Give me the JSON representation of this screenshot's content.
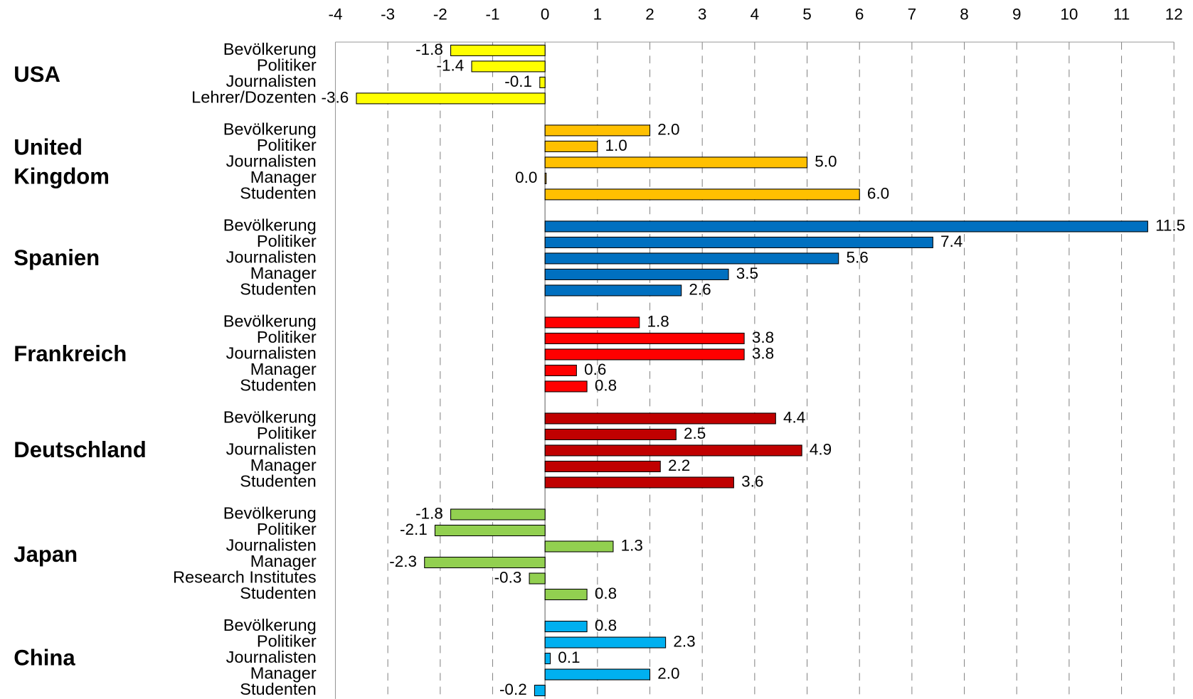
{
  "chart_data": {
    "type": "grouped-barh",
    "xlim": [
      -4,
      12
    ],
    "xticks": [
      -4,
      -3,
      -2,
      -1,
      0,
      1,
      2,
      3,
      4,
      5,
      6,
      7,
      8,
      9,
      10,
      11,
      12
    ],
    "grid": true,
    "groups": [
      {
        "name": "USA",
        "color": "#ffff00",
        "categories": [
          "Bevölkerung",
          "Politiker",
          "Journalisten",
          "Lehrer/Dozenten"
        ],
        "values": [
          -1.8,
          -1.4,
          -0.1,
          -3.6
        ],
        "value_labels": [
          "-1.8",
          "-1.4",
          "-0.1",
          "-3.6"
        ]
      },
      {
        "name": "United Kingdom",
        "color": "#ffc000",
        "categories": [
          "Bevölkerung",
          "Politiker",
          "Journalisten",
          "Manager",
          "Studenten"
        ],
        "values": [
          2.0,
          1.0,
          5.0,
          0.0,
          6.0
        ],
        "value_labels": [
          "2.0",
          "1.0",
          "5.0",
          "0.0",
          "6.0"
        ]
      },
      {
        "name": "Spanien",
        "color": "#0070c0",
        "categories": [
          "Bevölkerung",
          "Politiker",
          "Journalisten",
          "Manager",
          "Studenten"
        ],
        "values": [
          11.5,
          7.4,
          5.6,
          3.5,
          2.6
        ],
        "value_labels": [
          "11.5",
          "7.4",
          "5.6",
          "3.5",
          "2.6"
        ]
      },
      {
        "name": "Frankreich",
        "color": "#ff0000",
        "categories": [
          "Bevölkerung",
          "Politiker",
          "Journalisten",
          "Manager",
          "Studenten"
        ],
        "values": [
          1.8,
          3.8,
          3.8,
          0.6,
          0.8
        ],
        "value_labels": [
          "1.8",
          "3.8",
          "3.8",
          "0.6",
          "0.8"
        ]
      },
      {
        "name": "Deutschland",
        "color": "#c00000",
        "categories": [
          "Bevölkerung",
          "Politiker",
          "Journalisten",
          "Manager",
          "Studenten"
        ],
        "values": [
          4.4,
          2.5,
          4.9,
          2.2,
          3.6
        ],
        "value_labels": [
          "4.4",
          "2.5",
          "4.9",
          "2.2",
          "3.6"
        ]
      },
      {
        "name": "Japan",
        "color": "#92d050",
        "categories": [
          "Bevölkerung",
          "Politiker",
          "Journalisten",
          "Manager",
          "Research Institutes",
          "Studenten"
        ],
        "values": [
          -1.8,
          -2.1,
          1.3,
          -2.3,
          -0.3,
          0.8
        ],
        "value_labels": [
          "-1.8",
          "-2.1",
          "1.3",
          "-2.3",
          "-0.3",
          "0.8"
        ]
      },
      {
        "name": "China",
        "color": "#00b0f0",
        "categories": [
          "Bevölkerung",
          "Politiker",
          "Journalisten",
          "Manager",
          "Studenten"
        ],
        "values": [
          0.8,
          2.3,
          0.1,
          2.0,
          -0.2
        ],
        "value_labels": [
          "0.8",
          "2.3",
          "0.1",
          "2.0",
          "-0.2"
        ]
      }
    ]
  }
}
